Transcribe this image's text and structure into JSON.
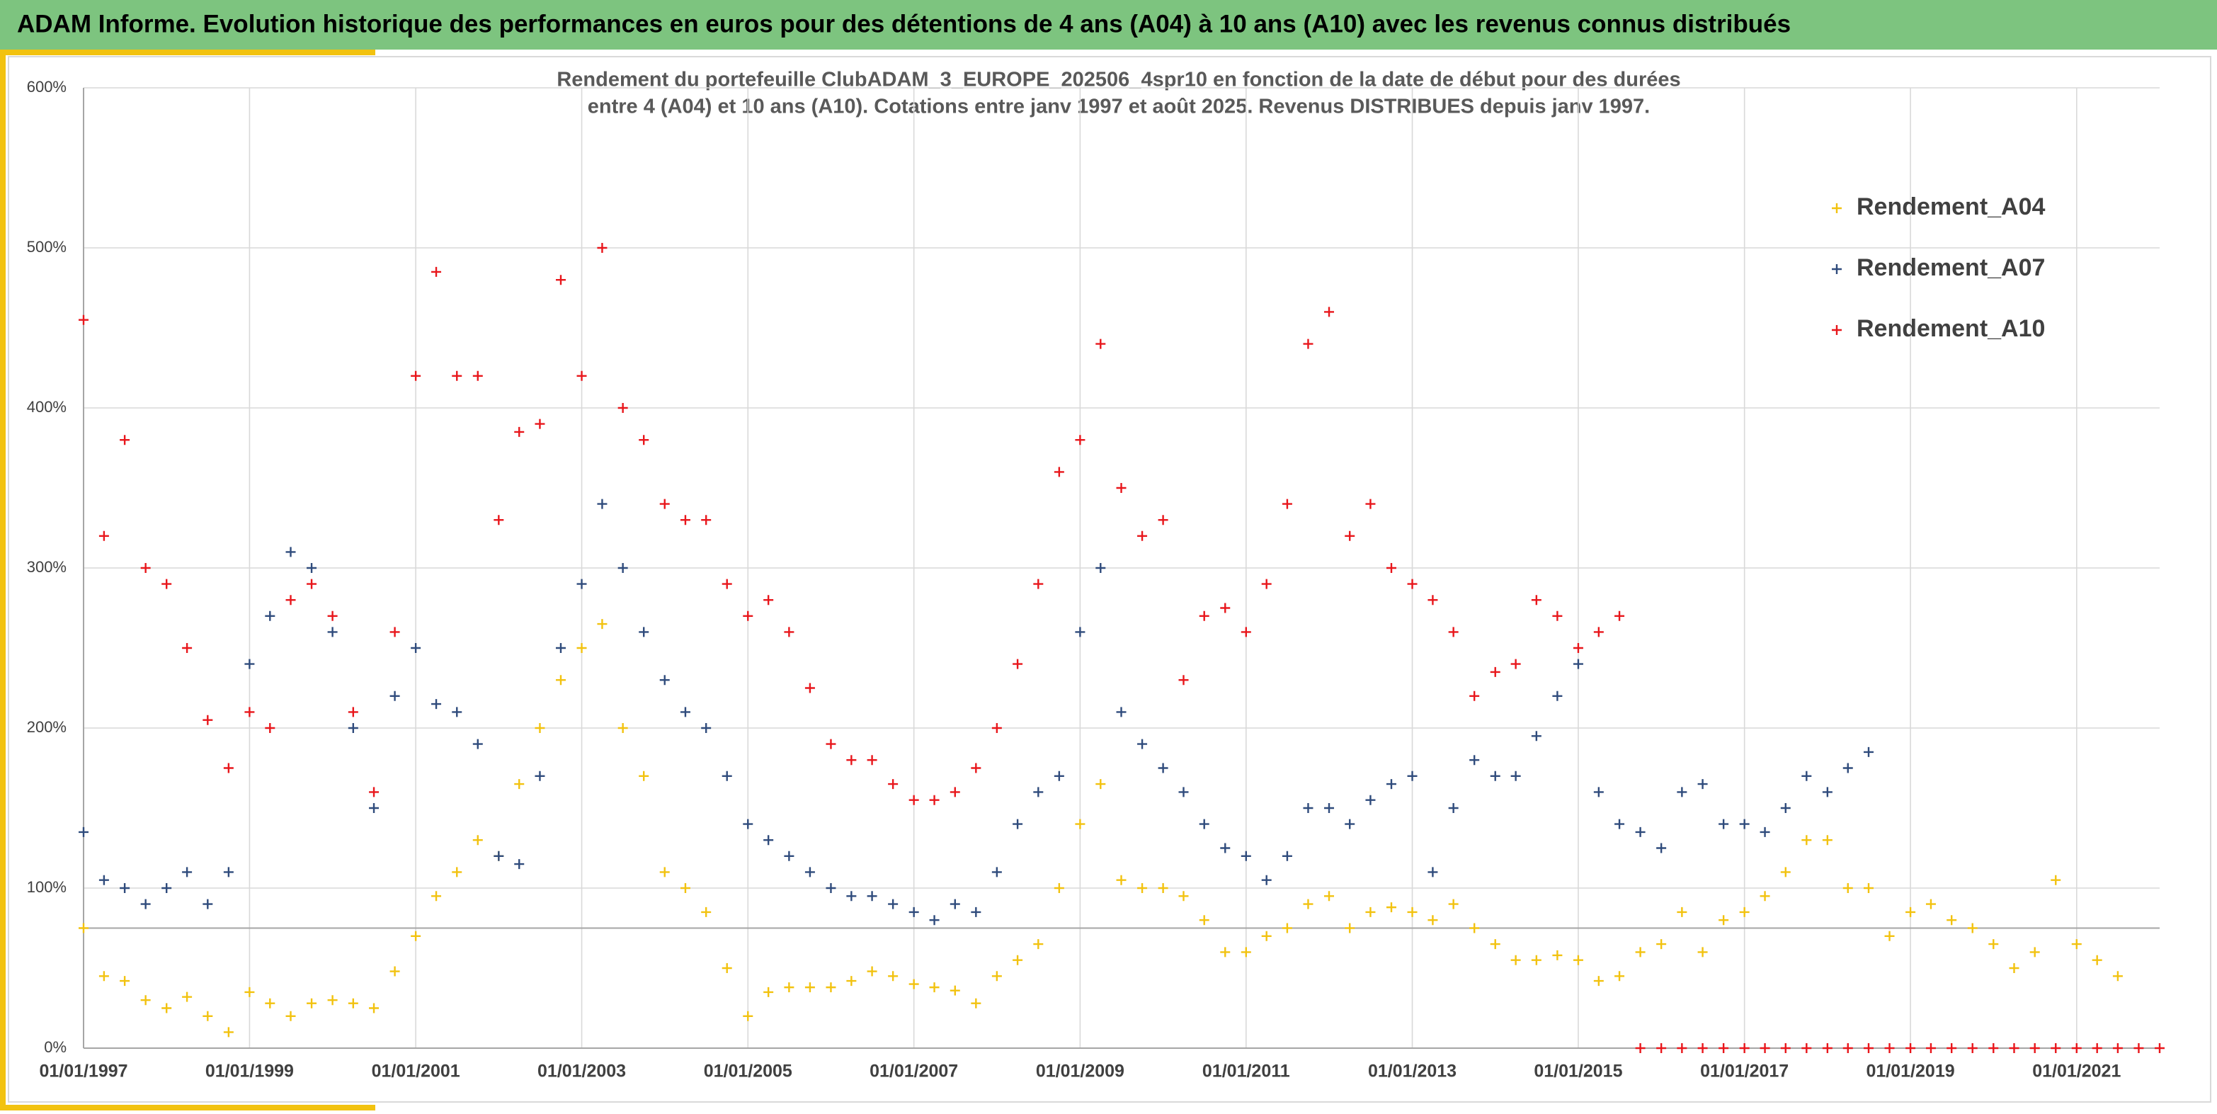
{
  "header": {
    "title": "ADAM Informe. Evolution historique des performances en euros pour des détentions de 4 ans (A04) à 10 ans (A10) avec les revenus connus distribués"
  },
  "chart_data": {
    "type": "scatter",
    "title": [
      "Rendement du portefeuille ClubADAM_3_EUROPE_202506_4spr10  en fonction de la date de début pour des durées",
      "entre 4 (A04) et 10 ans (A10). Cotations entre janv 1997 et août 2025. Revenus DISTRIBUES depuis janv 1997."
    ],
    "x": [
      "1997-01-01",
      "1997-04-01",
      "1997-07-01",
      "1997-10-01",
      "1998-01-01",
      "1998-04-01",
      "1998-07-01",
      "1998-10-01",
      "1999-01-01",
      "1999-04-01",
      "1999-07-01",
      "1999-10-01",
      "2000-01-01",
      "2000-04-01",
      "2000-07-01",
      "2000-10-01",
      "2001-01-01",
      "2001-04-01",
      "2001-07-01",
      "2001-10-01",
      "2002-01-01",
      "2002-04-01",
      "2002-07-01",
      "2002-10-01",
      "2003-01-01",
      "2003-04-01",
      "2003-07-01",
      "2003-10-01",
      "2004-01-01",
      "2004-04-01",
      "2004-07-01",
      "2004-10-01",
      "2005-01-01",
      "2005-04-01",
      "2005-07-01",
      "2005-10-01",
      "2006-01-01",
      "2006-04-01",
      "2006-07-01",
      "2006-10-01",
      "2007-01-01",
      "2007-04-01",
      "2007-07-01",
      "2007-10-01",
      "2008-01-01",
      "2008-04-01",
      "2008-07-01",
      "2008-10-01",
      "2009-01-01",
      "2009-04-01",
      "2009-07-01",
      "2009-10-01",
      "2010-01-01",
      "2010-04-01",
      "2010-07-01",
      "2010-10-01",
      "2011-01-01",
      "2011-04-01",
      "2011-07-01",
      "2011-10-01",
      "2012-01-01",
      "2012-04-01",
      "2012-07-01",
      "2012-10-01",
      "2013-01-01",
      "2013-04-01",
      "2013-07-01",
      "2013-10-01",
      "2014-01-01",
      "2014-04-01",
      "2014-07-01",
      "2014-10-01",
      "2015-01-01",
      "2015-04-01",
      "2015-07-01",
      "2015-10-01",
      "2016-01-01",
      "2016-04-01",
      "2016-07-01",
      "2016-10-01",
      "2017-01-01",
      "2017-04-01",
      "2017-07-01",
      "2017-10-01",
      "2018-01-01",
      "2018-04-01",
      "2018-07-01",
      "2018-10-01",
      "2019-01-01",
      "2019-04-01",
      "2019-07-01",
      "2019-10-01",
      "2020-01-01",
      "2020-04-01",
      "2020-07-01",
      "2020-10-01",
      "2021-01-01",
      "2021-04-01",
      "2021-07-01",
      "2021-10-01",
      "2022-01-01"
    ],
    "series": [
      {
        "name": "Rendement_A04",
        "color": "#f2c20f",
        "values": [
          75,
          45,
          42,
          30,
          25,
          32,
          20,
          10,
          35,
          28,
          20,
          28,
          30,
          28,
          25,
          48,
          70,
          95,
          110,
          130,
          120,
          165,
          200,
          230,
          250,
          265,
          200,
          170,
          110,
          100,
          85,
          50,
          20,
          35,
          38,
          38,
          38,
          42,
          48,
          45,
          40,
          38,
          36,
          28,
          45,
          55,
          65,
          100,
          140,
          165,
          105,
          100,
          100,
          95,
          80,
          60,
          60,
          70,
          75,
          90,
          95,
          75,
          85,
          88,
          85,
          80,
          90,
          75,
          65,
          55,
          55,
          58,
          55,
          42,
          45,
          60,
          65,
          85,
          60,
          80,
          85,
          95,
          110,
          130,
          130,
          100,
          100,
          70,
          85,
          90,
          80,
          75,
          65,
          50,
          60,
          105,
          65,
          55,
          45,
          null,
          null
        ]
      },
      {
        "name": "Rendement_A07",
        "color": "#2f4b7c",
        "values": [
          135,
          105,
          100,
          90,
          100,
          110,
          90,
          110,
          240,
          270,
          310,
          300,
          260,
          200,
          150,
          220,
          250,
          215,
          210,
          190,
          120,
          115,
          170,
          250,
          290,
          340,
          300,
          260,
          230,
          210,
          200,
          170,
          140,
          130,
          120,
          110,
          100,
          95,
          95,
          90,
          85,
          80,
          90,
          85,
          110,
          140,
          160,
          170,
          260,
          300,
          210,
          190,
          175,
          160,
          140,
          125,
          120,
          105,
          120,
          150,
          150,
          140,
          155,
          165,
          170,
          110,
          150,
          180,
          170,
          170,
          195,
          220,
          240,
          160,
          140,
          135,
          125,
          160,
          165,
          140,
          140,
          135,
          150,
          170,
          160,
          175,
          185,
          null,
          null,
          null,
          null,
          null,
          null,
          null,
          null,
          null,
          null,
          null,
          null,
          null,
          null
        ]
      },
      {
        "name": "Rendement_A10",
        "color": "#e8161b",
        "values": [
          455,
          320,
          380,
          300,
          290,
          250,
          205,
          175,
          210,
          200,
          280,
          290,
          270,
          210,
          160,
          260,
          420,
          485,
          420,
          420,
          330,
          385,
          390,
          480,
          420,
          500,
          400,
          380,
          340,
          330,
          330,
          290,
          270,
          280,
          260,
          225,
          190,
          180,
          180,
          165,
          155,
          155,
          160,
          175,
          200,
          240,
          290,
          360,
          380,
          440,
          350,
          320,
          330,
          230,
          270,
          275,
          260,
          290,
          340,
          440,
          460,
          320,
          340,
          300,
          290,
          280,
          260,
          220,
          235,
          240,
          280,
          270,
          250,
          260,
          270,
          0,
          0,
          0,
          0,
          0,
          0,
          0,
          0,
          0,
          0,
          0,
          0,
          0,
          0,
          0,
          0,
          0,
          0,
          0,
          0,
          0,
          0,
          0,
          0,
          0,
          0
        ]
      }
    ],
    "xlim": [
      "1997-01-01",
      "2022-01-01"
    ],
    "xticks": [
      {
        "value": "1997-01-01",
        "label": "01/01/1997"
      },
      {
        "value": "1999-01-01",
        "label": "01/01/1999"
      },
      {
        "value": "2001-01-01",
        "label": "01/01/2001"
      },
      {
        "value": "2003-01-01",
        "label": "01/01/2003"
      },
      {
        "value": "2005-01-01",
        "label": "01/01/2005"
      },
      {
        "value": "2007-01-01",
        "label": "01/01/2007"
      },
      {
        "value": "2009-01-01",
        "label": "01/01/2009"
      },
      {
        "value": "2011-01-01",
        "label": "01/01/2011"
      },
      {
        "value": "2013-01-01",
        "label": "01/01/2013"
      },
      {
        "value": "2015-01-01",
        "label": "01/01/2015"
      },
      {
        "value": "2017-01-01",
        "label": "01/01/2017"
      },
      {
        "value": "2019-01-01",
        "label": "01/01/2019"
      },
      {
        "value": "2021-01-01",
        "label": "01/01/2021"
      }
    ],
    "ylim": [
      0,
      600
    ],
    "yticks": [
      {
        "value": 0,
        "label": "0%"
      },
      {
        "value": 100,
        "label": "100%"
      },
      {
        "value": 200,
        "label": "200%"
      },
      {
        "value": 300,
        "label": "300%"
      },
      {
        "value": 400,
        "label": "400%"
      },
      {
        "value": 500,
        "label": "500%"
      },
      {
        "value": 600,
        "label": "600%"
      }
    ],
    "reference_line": 75,
    "grid": true,
    "legend": "upper right"
  }
}
